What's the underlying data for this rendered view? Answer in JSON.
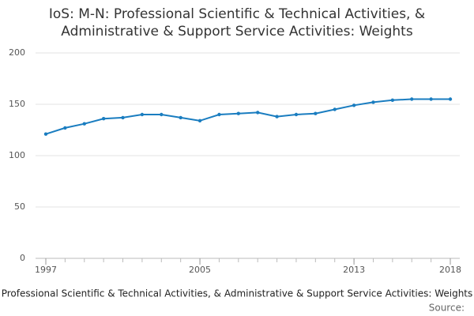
{
  "chart_data": {
    "type": "line",
    "title": [
      "IoS: M-N: Professional Scientific & Technical Activities, &",
      "Administrative & Support Service Activities: Weights"
    ],
    "x_label": "Professional Scientific & Technical Activities, & Administrative & Support Service Activities: Weights",
    "source": "Source:",
    "x": [
      1997,
      1998,
      1999,
      2000,
      2001,
      2002,
      2003,
      2004,
      2005,
      2006,
      2007,
      2008,
      2009,
      2010,
      2011,
      2012,
      2013,
      2014,
      2015,
      2016,
      2017,
      2018
    ],
    "values": [
      121,
      127,
      131,
      136,
      137,
      140,
      140,
      137,
      134,
      140,
      141,
      142,
      138,
      140,
      141,
      145,
      149,
      152,
      154,
      155,
      155,
      155
    ],
    "color": "#1a7dc0",
    "xlim": [
      1997,
      2018
    ],
    "xticks": [
      1997,
      2005,
      2013,
      2018
    ],
    "ylim": [
      0,
      200
    ],
    "yticks": [
      0,
      50,
      100,
      150,
      200
    ],
    "grid": true
  }
}
